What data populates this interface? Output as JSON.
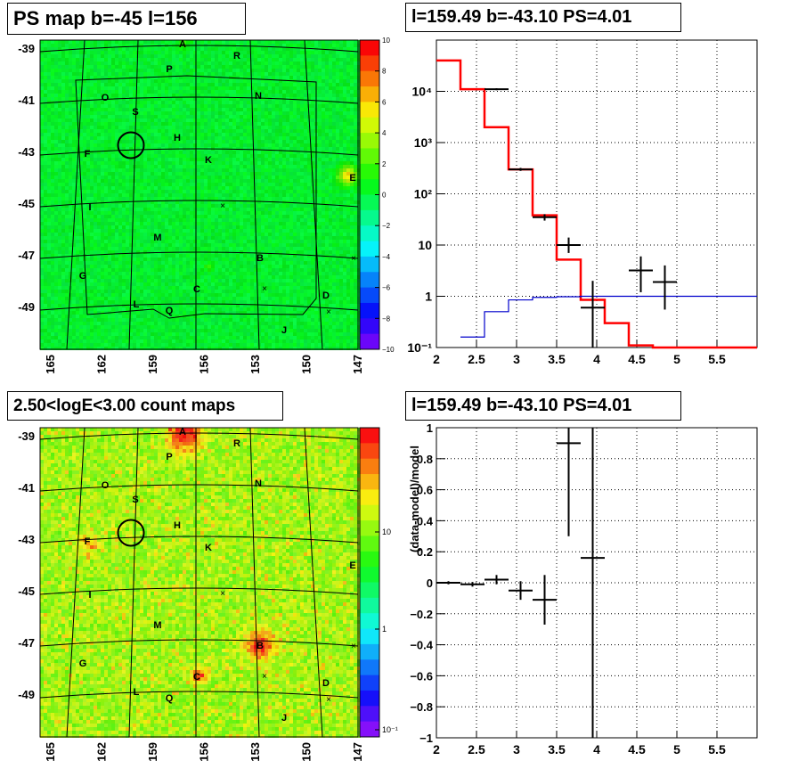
{
  "panels": {
    "ps_map": {
      "title": "PS map b=-45 l=156",
      "colorbar_ticks": [
        "10",
        "8",
        "6",
        "4",
        "2",
        "0",
        "−2",
        "−4",
        "−6",
        "−8",
        "−10"
      ]
    },
    "count_map": {
      "title": "2.50<logE<3.00 count maps",
      "colorbar_ticks": [
        "10",
        "1",
        "10⁻¹"
      ]
    },
    "spectrum": {
      "title": "l=159.49 b=-43.10 PS=4.01"
    },
    "residual": {
      "title": "l=159.49 b=-43.10 PS=4.01",
      "ylabel": "(data-model)/model"
    }
  },
  "map_axes": {
    "lat_ticks": [
      "-39",
      "-41",
      "-43",
      "-45",
      "-47",
      "-49"
    ],
    "lon_ticks": [
      "165",
      "162",
      "159",
      "156",
      "153",
      "150",
      "147"
    ]
  },
  "source_labels": [
    "A",
    "P",
    "R",
    "O",
    "S",
    "N",
    "H",
    "F",
    "K",
    "E",
    "I",
    "M",
    "G",
    "B",
    "C",
    "L",
    "Q",
    "D",
    "J"
  ],
  "chart_data": [
    {
      "type": "heatmap",
      "title": "PS map b=-45 l=156",
      "x_ticks": [
        "165",
        "162",
        "159",
        "156",
        "153",
        "150",
        "147"
      ],
      "y_ticks": [
        "-39",
        "-41",
        "-43",
        "-45",
        "-47",
        "-49"
      ],
      "zlim": [
        -10,
        10
      ],
      "z_ticks": [
        10,
        8,
        6,
        4,
        2,
        0,
        -2,
        -4,
        -6,
        -8,
        -10
      ],
      "highlighted_source": {
        "l": 159.49,
        "b": -43.1
      },
      "hotspots": [
        {
          "label": "E",
          "value": 5
        },
        {
          "label": "A",
          "value": 2
        }
      ]
    },
    {
      "type": "line",
      "title": "l=159.49 b=-43.10 PS=4.01",
      "xlim": [
        2,
        6
      ],
      "ylim": [
        0.1,
        100000
      ],
      "yscale": "log",
      "x_ticks": [
        2,
        2.5,
        3,
        3.5,
        4,
        4.5,
        5,
        5.5
      ],
      "y_ticks": [
        "10⁻¹",
        "1",
        "10",
        "10²",
        "10³",
        "10⁴"
      ],
      "series": [
        {
          "color": "#ff0000",
          "steps": [
            [
              2,
              2.3,
              40000
            ],
            [
              2.3,
              2.6,
              11000
            ],
            [
              2.6,
              2.9,
              2000
            ],
            [
              2.9,
              3.2,
              300
            ],
            [
              3.2,
              3.5,
              38
            ],
            [
              3.5,
              3.8,
              5.2
            ],
            [
              3.8,
              4.1,
              0.85
            ],
            [
              4.1,
              4.4,
              0.3
            ],
            [
              4.4,
              4.7,
              0.11
            ],
            [
              4.7,
              6,
              0.1
            ]
          ]
        },
        {
          "color": "#0000cc",
          "steps": [
            [
              2.3,
              2.6,
              0.16
            ],
            [
              2.6,
              2.9,
              0.5
            ],
            [
              2.9,
              3.2,
              0.85
            ],
            [
              3.2,
              3.5,
              0.95
            ],
            [
              3.5,
              3.8,
              0.98
            ],
            [
              3.8,
              6,
              1.0
            ]
          ]
        },
        {
          "color": "#000000",
          "points": [
            {
              "x": 2.75,
              "y": 11000,
              "ylo": 10500,
              "yhi": 11500
            },
            {
              "x": 3.05,
              "y": 300,
              "ylo": 280,
              "yhi": 320
            },
            {
              "x": 3.35,
              "y": 35,
              "ylo": 30,
              "yhi": 40
            },
            {
              "x": 3.65,
              "y": 10,
              "ylo": 7,
              "yhi": 14
            },
            {
              "x": 3.95,
              "y": 0.6,
              "ylo": 0.1,
              "yhi": 2
            },
            {
              "x": 4.55,
              "y": 3.2,
              "ylo": 1.2,
              "yhi": 6
            },
            {
              "x": 4.85,
              "y": 1.9,
              "ylo": 0.55,
              "yhi": 4
            }
          ]
        }
      ]
    },
    {
      "type": "heatmap",
      "title": "2.50<logE<3.00 count maps",
      "x_ticks": [
        "165",
        "162",
        "159",
        "156",
        "153",
        "150",
        "147"
      ],
      "y_ticks": [
        "-39",
        "-41",
        "-43",
        "-45",
        "-47",
        "-49"
      ],
      "zscale": "log",
      "z_ticks": [
        "10",
        "1",
        "10⁻¹"
      ],
      "hotspots": [
        {
          "label": "A"
        },
        {
          "label": "B"
        },
        {
          "label": "C"
        },
        {
          "label": "F"
        }
      ]
    },
    {
      "type": "scatter",
      "title": "l=159.49 b=-43.10 PS=4.01",
      "ylabel": "(data-model)/model",
      "xlim": [
        2,
        6
      ],
      "ylim": [
        -1,
        1
      ],
      "x_ticks": [
        2,
        2.5,
        3,
        3.5,
        4,
        4.5,
        5,
        5.5
      ],
      "y_ticks": [
        -1,
        -0.8,
        -0.6,
        -0.4,
        -0.2,
        0,
        0.2,
        0.4,
        0.6,
        0.8,
        1
      ],
      "points": [
        {
          "x": 2.15,
          "y": 0.0,
          "xerr": 0.15,
          "yerr": 0.01
        },
        {
          "x": 2.45,
          "y": -0.01,
          "xerr": 0.15,
          "yerr": 0.015
        },
        {
          "x": 2.75,
          "y": 0.02,
          "xerr": 0.15,
          "yerr": 0.03
        },
        {
          "x": 3.05,
          "y": -0.05,
          "xerr": 0.15,
          "yerr": 0.06
        },
        {
          "x": 3.35,
          "y": -0.11,
          "xerr": 0.15,
          "yerr": 0.16
        },
        {
          "x": 3.65,
          "y": 0.9,
          "xerr": 0.15,
          "yerr": 0.6
        },
        {
          "x": 3.95,
          "y": 0.16,
          "xerr": 0.15,
          "yerr": 1.2
        }
      ]
    }
  ]
}
